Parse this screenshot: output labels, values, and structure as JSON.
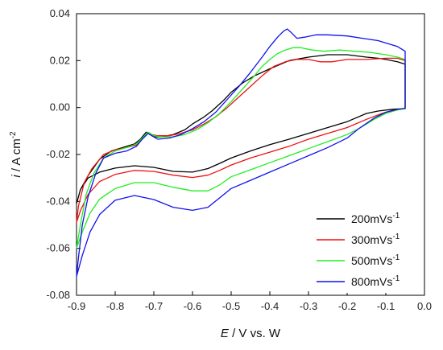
{
  "chart_data": {
    "type": "line",
    "title": "",
    "xlabel": {
      "italic": "E",
      "rest": " / V vs. W"
    },
    "ylabel": {
      "italic": "i",
      "rest": " / A cm",
      "sup": "-2"
    },
    "xlim": [
      -0.9,
      0.0
    ],
    "ylim": [
      -0.08,
      0.04
    ],
    "x_ticks": [
      "-0.9",
      "-0.8",
      "-0.7",
      "-0.6",
      "-0.5",
      "-0.4",
      "-0.3",
      "-0.2",
      "-0.1",
      "0.0"
    ],
    "y_ticks": [
      "-0.08",
      "-0.06",
      "-0.04",
      "-0.02",
      "0.00",
      "0.02",
      "0.04"
    ],
    "legend_position": "bottom-right",
    "grid": false,
    "series": [
      {
        "name": "200mVs",
        "name_sup": "-1",
        "color": "#000000",
        "points": [
          [
            -0.9,
            -0.041
          ],
          [
            -0.89,
            -0.035
          ],
          [
            -0.87,
            -0.029
          ],
          [
            -0.84,
            -0.022
          ],
          [
            -0.81,
            -0.0185
          ],
          [
            -0.78,
            -0.017
          ],
          [
            -0.75,
            -0.0155
          ],
          [
            -0.735,
            -0.0135
          ],
          [
            -0.72,
            -0.0105
          ],
          [
            -0.71,
            -0.0115
          ],
          [
            -0.7,
            -0.0125
          ],
          [
            -0.68,
            -0.0125
          ],
          [
            -0.65,
            -0.0115
          ],
          [
            -0.62,
            -0.0095
          ],
          [
            -0.6,
            -0.007
          ],
          [
            -0.57,
            -0.004
          ],
          [
            -0.55,
            -0.0015
          ],
          [
            -0.52,
            0.003
          ],
          [
            -0.5,
            0.0065
          ],
          [
            -0.47,
            0.0105
          ],
          [
            -0.44,
            0.0135
          ],
          [
            -0.4,
            0.0165
          ],
          [
            -0.35,
            0.02
          ],
          [
            -0.3,
            0.0215
          ],
          [
            -0.25,
            0.0225
          ],
          [
            -0.2,
            0.0225
          ],
          [
            -0.15,
            0.0215
          ],
          [
            -0.12,
            0.021
          ],
          [
            -0.1,
            0.0205
          ],
          [
            -0.07,
            0.0195
          ],
          [
            -0.05,
            0.0185
          ],
          [
            -0.05,
            -0.0005
          ],
          [
            -0.08,
            -0.0007
          ],
          [
            -0.12,
            -0.0015
          ],
          [
            -0.15,
            -0.0025
          ],
          [
            -0.2,
            -0.006
          ],
          [
            -0.25,
            -0.0085
          ],
          [
            -0.3,
            -0.011
          ],
          [
            -0.35,
            -0.0135
          ],
          [
            -0.4,
            -0.0158
          ],
          [
            -0.45,
            -0.0185
          ],
          [
            -0.5,
            -0.0215
          ],
          [
            -0.53,
            -0.0238
          ],
          [
            -0.56,
            -0.026
          ],
          [
            -0.6,
            -0.0275
          ],
          [
            -0.65,
            -0.0272
          ],
          [
            -0.7,
            -0.0255
          ],
          [
            -0.75,
            -0.0248
          ],
          [
            -0.8,
            -0.0258
          ],
          [
            -0.84,
            -0.0275
          ],
          [
            -0.87,
            -0.03
          ],
          [
            -0.89,
            -0.035
          ],
          [
            -0.9,
            -0.041
          ]
        ]
      },
      {
        "name": "300mVs",
        "name_sup": "-1",
        "color": "#ee1111",
        "points": [
          [
            -0.9,
            -0.049
          ],
          [
            -0.895,
            -0.042
          ],
          [
            -0.88,
            -0.032
          ],
          [
            -0.86,
            -0.026
          ],
          [
            -0.83,
            -0.02
          ],
          [
            -0.8,
            -0.018
          ],
          [
            -0.77,
            -0.017
          ],
          [
            -0.745,
            -0.016
          ],
          [
            -0.73,
            -0.0135
          ],
          [
            -0.715,
            -0.0105
          ],
          [
            -0.705,
            -0.0115
          ],
          [
            -0.69,
            -0.012
          ],
          [
            -0.66,
            -0.012
          ],
          [
            -0.63,
            -0.011
          ],
          [
            -0.6,
            -0.0095
          ],
          [
            -0.57,
            -0.007
          ],
          [
            -0.54,
            -0.004
          ],
          [
            -0.51,
            0.0
          ],
          [
            -0.48,
            0.0045
          ],
          [
            -0.45,
            0.009
          ],
          [
            -0.42,
            0.0135
          ],
          [
            -0.39,
            0.0175
          ],
          [
            -0.36,
            0.0195
          ],
          [
            -0.33,
            0.0205
          ],
          [
            -0.3,
            0.0205
          ],
          [
            -0.27,
            0.0195
          ],
          [
            -0.24,
            0.0195
          ],
          [
            -0.2,
            0.0205
          ],
          [
            -0.15,
            0.0205
          ],
          [
            -0.1,
            0.021
          ],
          [
            -0.07,
            0.021
          ],
          [
            -0.05,
            0.02
          ],
          [
            -0.05,
            -0.0005
          ],
          [
            -0.08,
            -0.001
          ],
          [
            -0.11,
            -0.0025
          ],
          [
            -0.15,
            -0.005
          ],
          [
            -0.2,
            -0.0085
          ],
          [
            -0.25,
            -0.011
          ],
          [
            -0.3,
            -0.0135
          ],
          [
            -0.35,
            -0.0165
          ],
          [
            -0.4,
            -0.019
          ],
          [
            -0.45,
            -0.0215
          ],
          [
            -0.5,
            -0.0245
          ],
          [
            -0.53,
            -0.0268
          ],
          [
            -0.56,
            -0.0288
          ],
          [
            -0.6,
            -0.0298
          ],
          [
            -0.65,
            -0.0288
          ],
          [
            -0.7,
            -0.0272
          ],
          [
            -0.75,
            -0.0268
          ],
          [
            -0.8,
            -0.0285
          ],
          [
            -0.84,
            -0.0315
          ],
          [
            -0.87,
            -0.037
          ],
          [
            -0.89,
            -0.044
          ],
          [
            -0.9,
            -0.049
          ]
        ]
      },
      {
        "name": "500mVs",
        "name_sup": "-1",
        "color": "#22ee22",
        "points": [
          [
            -0.9,
            -0.06
          ],
          [
            -0.89,
            -0.05
          ],
          [
            -0.875,
            -0.037
          ],
          [
            -0.855,
            -0.028
          ],
          [
            -0.83,
            -0.0215
          ],
          [
            -0.8,
            -0.0185
          ],
          [
            -0.77,
            -0.017
          ],
          [
            -0.745,
            -0.0155
          ],
          [
            -0.73,
            -0.013
          ],
          [
            -0.715,
            -0.0105
          ],
          [
            -0.7,
            -0.012
          ],
          [
            -0.68,
            -0.0125
          ],
          [
            -0.65,
            -0.0125
          ],
          [
            -0.62,
            -0.0115
          ],
          [
            -0.59,
            -0.0095
          ],
          [
            -0.56,
            -0.0065
          ],
          [
            -0.53,
            -0.0025
          ],
          [
            -0.5,
            0.0025
          ],
          [
            -0.47,
            0.008
          ],
          [
            -0.44,
            0.0135
          ],
          [
            -0.42,
            0.0175
          ],
          [
            -0.4,
            0.0205
          ],
          [
            -0.38,
            0.023
          ],
          [
            -0.36,
            0.0245
          ],
          [
            -0.34,
            0.0255
          ],
          [
            -0.32,
            0.0255
          ],
          [
            -0.29,
            0.0245
          ],
          [
            -0.26,
            0.024
          ],
          [
            -0.22,
            0.0245
          ],
          [
            -0.18,
            0.024
          ],
          [
            -0.14,
            0.0235
          ],
          [
            -0.1,
            0.0225
          ],
          [
            -0.07,
            0.0215
          ],
          [
            -0.05,
            0.0205
          ],
          [
            -0.05,
            -0.0005
          ],
          [
            -0.07,
            -0.001
          ],
          [
            -0.1,
            -0.0025
          ],
          [
            -0.13,
            -0.005
          ],
          [
            -0.17,
            -0.009
          ],
          [
            -0.2,
            -0.0115
          ],
          [
            -0.25,
            -0.0145
          ],
          [
            -0.3,
            -0.0175
          ],
          [
            -0.35,
            -0.0205
          ],
          [
            -0.4,
            -0.0235
          ],
          [
            -0.45,
            -0.0265
          ],
          [
            -0.5,
            -0.0295
          ],
          [
            -0.53,
            -0.033
          ],
          [
            -0.56,
            -0.0355
          ],
          [
            -0.6,
            -0.0355
          ],
          [
            -0.65,
            -0.034
          ],
          [
            -0.7,
            -0.032
          ],
          [
            -0.75,
            -0.032
          ],
          [
            -0.8,
            -0.0345
          ],
          [
            -0.84,
            -0.039
          ],
          [
            -0.865,
            -0.045
          ],
          [
            -0.885,
            -0.053
          ],
          [
            -0.9,
            -0.06
          ]
        ]
      },
      {
        "name": "800mVs",
        "name_sup": "-1",
        "color": "#1111ee",
        "points": [
          [
            -0.9,
            -0.072
          ],
          [
            -0.895,
            -0.064
          ],
          [
            -0.885,
            -0.05
          ],
          [
            -0.87,
            -0.038
          ],
          [
            -0.85,
            -0.028
          ],
          [
            -0.83,
            -0.0215
          ],
          [
            -0.8,
            -0.0195
          ],
          [
            -0.77,
            -0.0185
          ],
          [
            -0.745,
            -0.0165
          ],
          [
            -0.73,
            -0.0135
          ],
          [
            -0.715,
            -0.011
          ],
          [
            -0.705,
            -0.012
          ],
          [
            -0.69,
            -0.0135
          ],
          [
            -0.66,
            -0.013
          ],
          [
            -0.63,
            -0.0115
          ],
          [
            -0.6,
            -0.009
          ],
          [
            -0.57,
            -0.006
          ],
          [
            -0.54,
            -0.002
          ],
          [
            -0.51,
            0.0035
          ],
          [
            -0.48,
            0.009
          ],
          [
            -0.45,
            0.015
          ],
          [
            -0.42,
            0.0215
          ],
          [
            -0.4,
            0.026
          ],
          [
            -0.38,
            0.03
          ],
          [
            -0.365,
            0.0325
          ],
          [
            -0.355,
            0.0335
          ],
          [
            -0.345,
            0.032
          ],
          [
            -0.33,
            0.0295
          ],
          [
            -0.31,
            0.03
          ],
          [
            -0.28,
            0.031
          ],
          [
            -0.25,
            0.031
          ],
          [
            -0.2,
            0.0305
          ],
          [
            -0.16,
            0.0295
          ],
          [
            -0.12,
            0.0285
          ],
          [
            -0.09,
            0.027
          ],
          [
            -0.07,
            0.026
          ],
          [
            -0.05,
            0.024
          ],
          [
            -0.05,
            -0.0003
          ],
          [
            -0.07,
            -0.0008
          ],
          [
            -0.1,
            -0.002
          ],
          [
            -0.13,
            -0.0045
          ],
          [
            -0.17,
            -0.009
          ],
          [
            -0.2,
            -0.013
          ],
          [
            -0.25,
            -0.017
          ],
          [
            -0.3,
            -0.0205
          ],
          [
            -0.35,
            -0.024
          ],
          [
            -0.4,
            -0.0275
          ],
          [
            -0.45,
            -0.031
          ],
          [
            -0.5,
            -0.0345
          ],
          [
            -0.53,
            -0.0385
          ],
          [
            -0.56,
            -0.0425
          ],
          [
            -0.6,
            -0.0438
          ],
          [
            -0.65,
            -0.0425
          ],
          [
            -0.7,
            -0.0392
          ],
          [
            -0.75,
            -0.0375
          ],
          [
            -0.8,
            -0.0395
          ],
          [
            -0.84,
            -0.0455
          ],
          [
            -0.865,
            -0.053
          ],
          [
            -0.885,
            -0.063
          ],
          [
            -0.9,
            -0.072
          ]
        ]
      }
    ]
  }
}
